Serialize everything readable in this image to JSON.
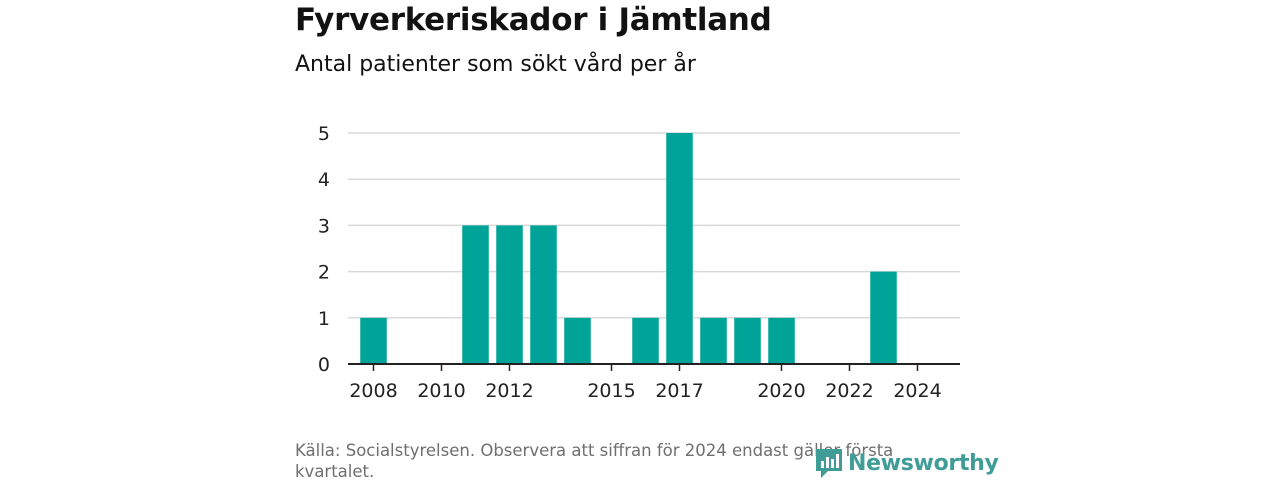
{
  "chart_data": {
    "type": "bar",
    "title": "Fyrverkeriskador i Jämtland",
    "subtitle": "Antal patienter som sökt vård per år",
    "x": [
      2008,
      2009,
      2010,
      2011,
      2012,
      2013,
      2014,
      2015,
      2016,
      2017,
      2018,
      2019,
      2020,
      2021,
      2022,
      2023,
      2024
    ],
    "values": [
      1,
      0,
      0,
      3,
      3,
      3,
      1,
      0,
      1,
      5,
      1,
      1,
      1,
      0,
      0,
      2,
      0
    ],
    "x_tick_labels": [
      "2008",
      "2010",
      "2012",
      "2015",
      "2017",
      "2020",
      "2022",
      "2024"
    ],
    "y_ticks": [
      "0",
      "1",
      "2",
      "3",
      "4",
      "5"
    ],
    "ylim": [
      0,
      5
    ],
    "xlim": [
      2007.25,
      2025.25
    ],
    "grid": true,
    "bar_color": "#00a398",
    "source": "Källa: Socialstyrelsen. Observera att siffran för 2024 endast gäller första kvartalet."
  },
  "branding": {
    "logo_text": "Newsworthy",
    "logo_color": "#3f9c96"
  }
}
